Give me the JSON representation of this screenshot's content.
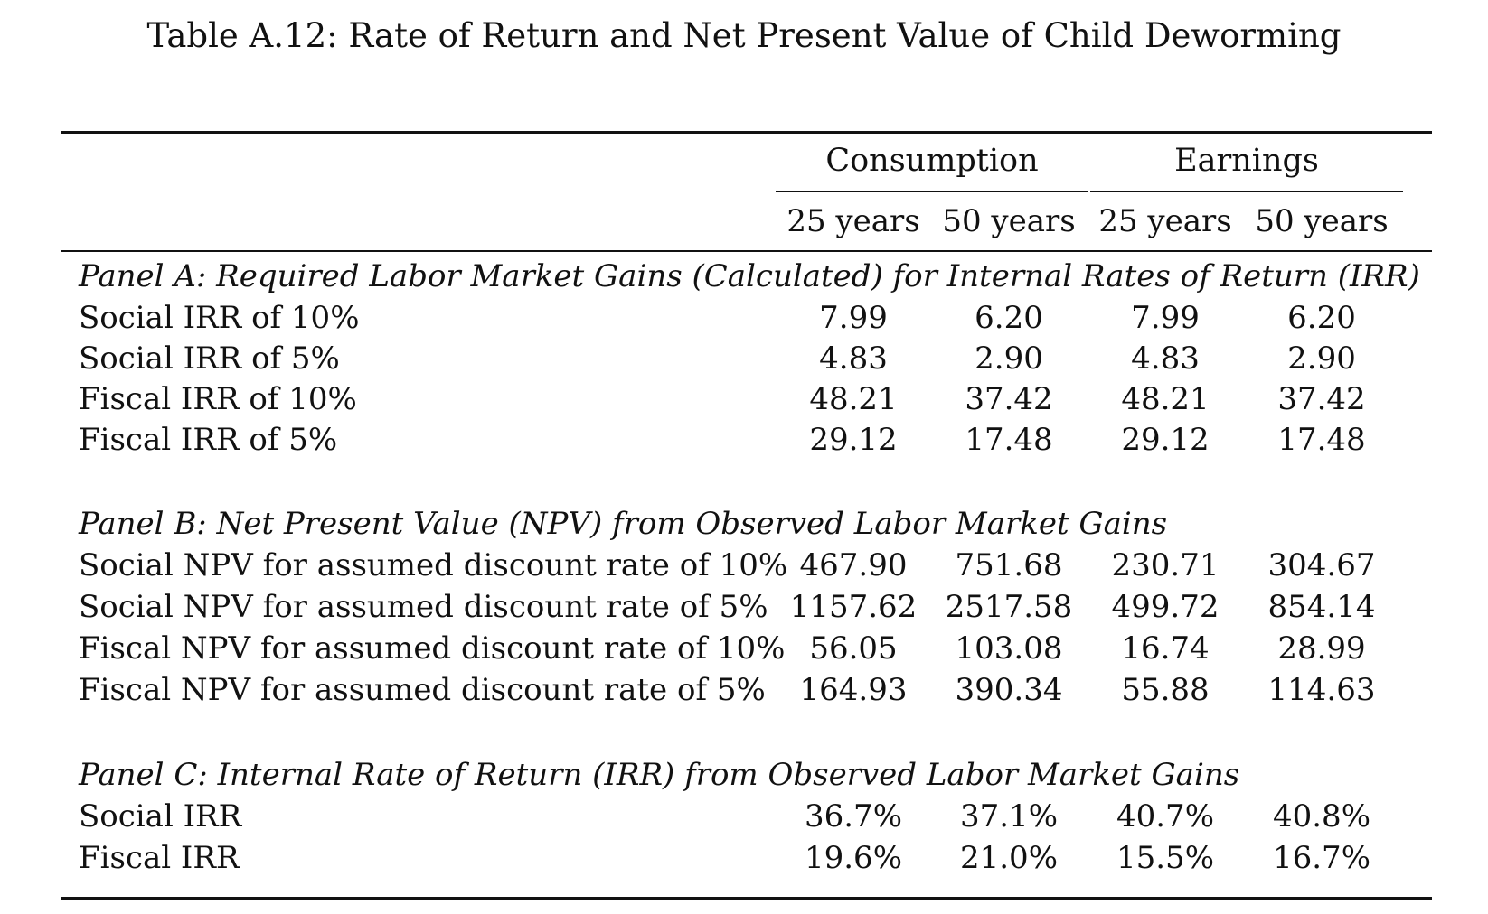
{
  "title": "Table A.12: Rate of Return and Net Present Value of Child Deworming",
  "column_groups": [
    "Consumption",
    "Earnings"
  ],
  "columns": [
    "25 years",
    "50 years",
    "25 years",
    "50 years"
  ],
  "panels": [
    {
      "title": "Panel A: Required Labor Market Gains (Calculated) for Internal Rates of Return (IRR)",
      "rows": [
        {
          "label": "Social IRR of 10%",
          "values": [
            "7.99",
            "6.20",
            "7.99",
            "6.20"
          ]
        },
        {
          "label": "Social IRR of 5%",
          "values": [
            "4.83",
            "2.90",
            "4.83",
            "2.90"
          ]
        },
        {
          "label": "Fiscal IRR of 10%",
          "values": [
            "48.21",
            "37.42",
            "48.21",
            "37.42"
          ]
        },
        {
          "label": "Fiscal IRR of 5%",
          "values": [
            "29.12",
            "17.48",
            "29.12",
            "17.48"
          ]
        }
      ]
    },
    {
      "title": "Panel B: Net Present Value (NPV) from Observed Labor Market Gains",
      "rows": [
        {
          "label": "Social NPV for assumed discount rate of 10%",
          "values": [
            "467.90",
            "751.68",
            "230.71",
            "304.67"
          ]
        },
        {
          "label": "Social NPV for assumed discount rate of 5%",
          "values": [
            "1157.62",
            "2517.58",
            "499.72",
            "854.14"
          ]
        },
        {
          "label": "Fiscal NPV for assumed discount rate of 10%",
          "values": [
            "56.05",
            "103.08",
            "16.74",
            "28.99"
          ]
        },
        {
          "label": "Fiscal NPV for assumed discount rate of 5%",
          "values": [
            "164.93",
            "390.34",
            "55.88",
            "114.63"
          ]
        }
      ]
    },
    {
      "title": "Panel C: Internal Rate of Return (IRR) from Observed Labor Market Gains",
      "rows": [
        {
          "label": "Social IRR",
          "values": [
            "36.7%",
            "37.1%",
            "40.7%",
            "40.8%"
          ]
        },
        {
          "label": "Fiscal IRR",
          "values": [
            "19.6%",
            "21.0%",
            "15.5%",
            "16.7%"
          ]
        }
      ]
    }
  ]
}
